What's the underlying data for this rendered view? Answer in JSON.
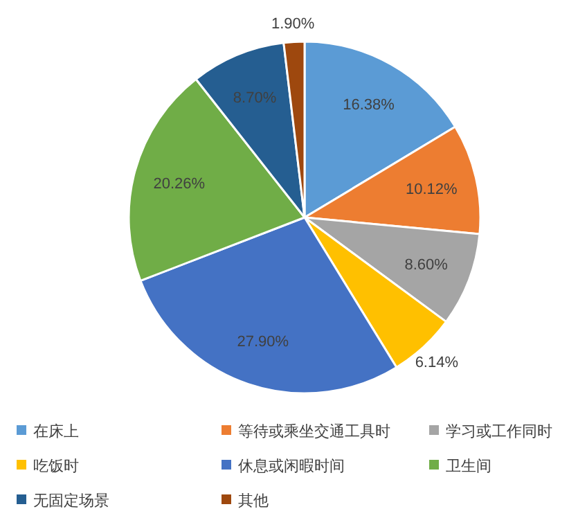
{
  "chart_data": {
    "type": "pie",
    "categories": [
      "在床上",
      "等待或乘坐交通工具时",
      "学习或工作同时",
      "吃饭时",
      "休息或闲暇时间",
      "卫生间",
      "无固定场景",
      "其他"
    ],
    "values": [
      16.38,
      10.12,
      8.6,
      6.14,
      27.9,
      20.26,
      8.7,
      1.9
    ],
    "value_labels": [
      "16.38%",
      "10.12%",
      "8.60%",
      "6.14%",
      "27.90%",
      "20.26%",
      "8.70%",
      "1.90%"
    ],
    "colors": [
      "#5b9bd5",
      "#ed7d31",
      "#a5a5a5",
      "#ffc000",
      "#4472c4",
      "#70ad47",
      "#255e91",
      "#9e480e"
    ],
    "legend": "bottom"
  }
}
